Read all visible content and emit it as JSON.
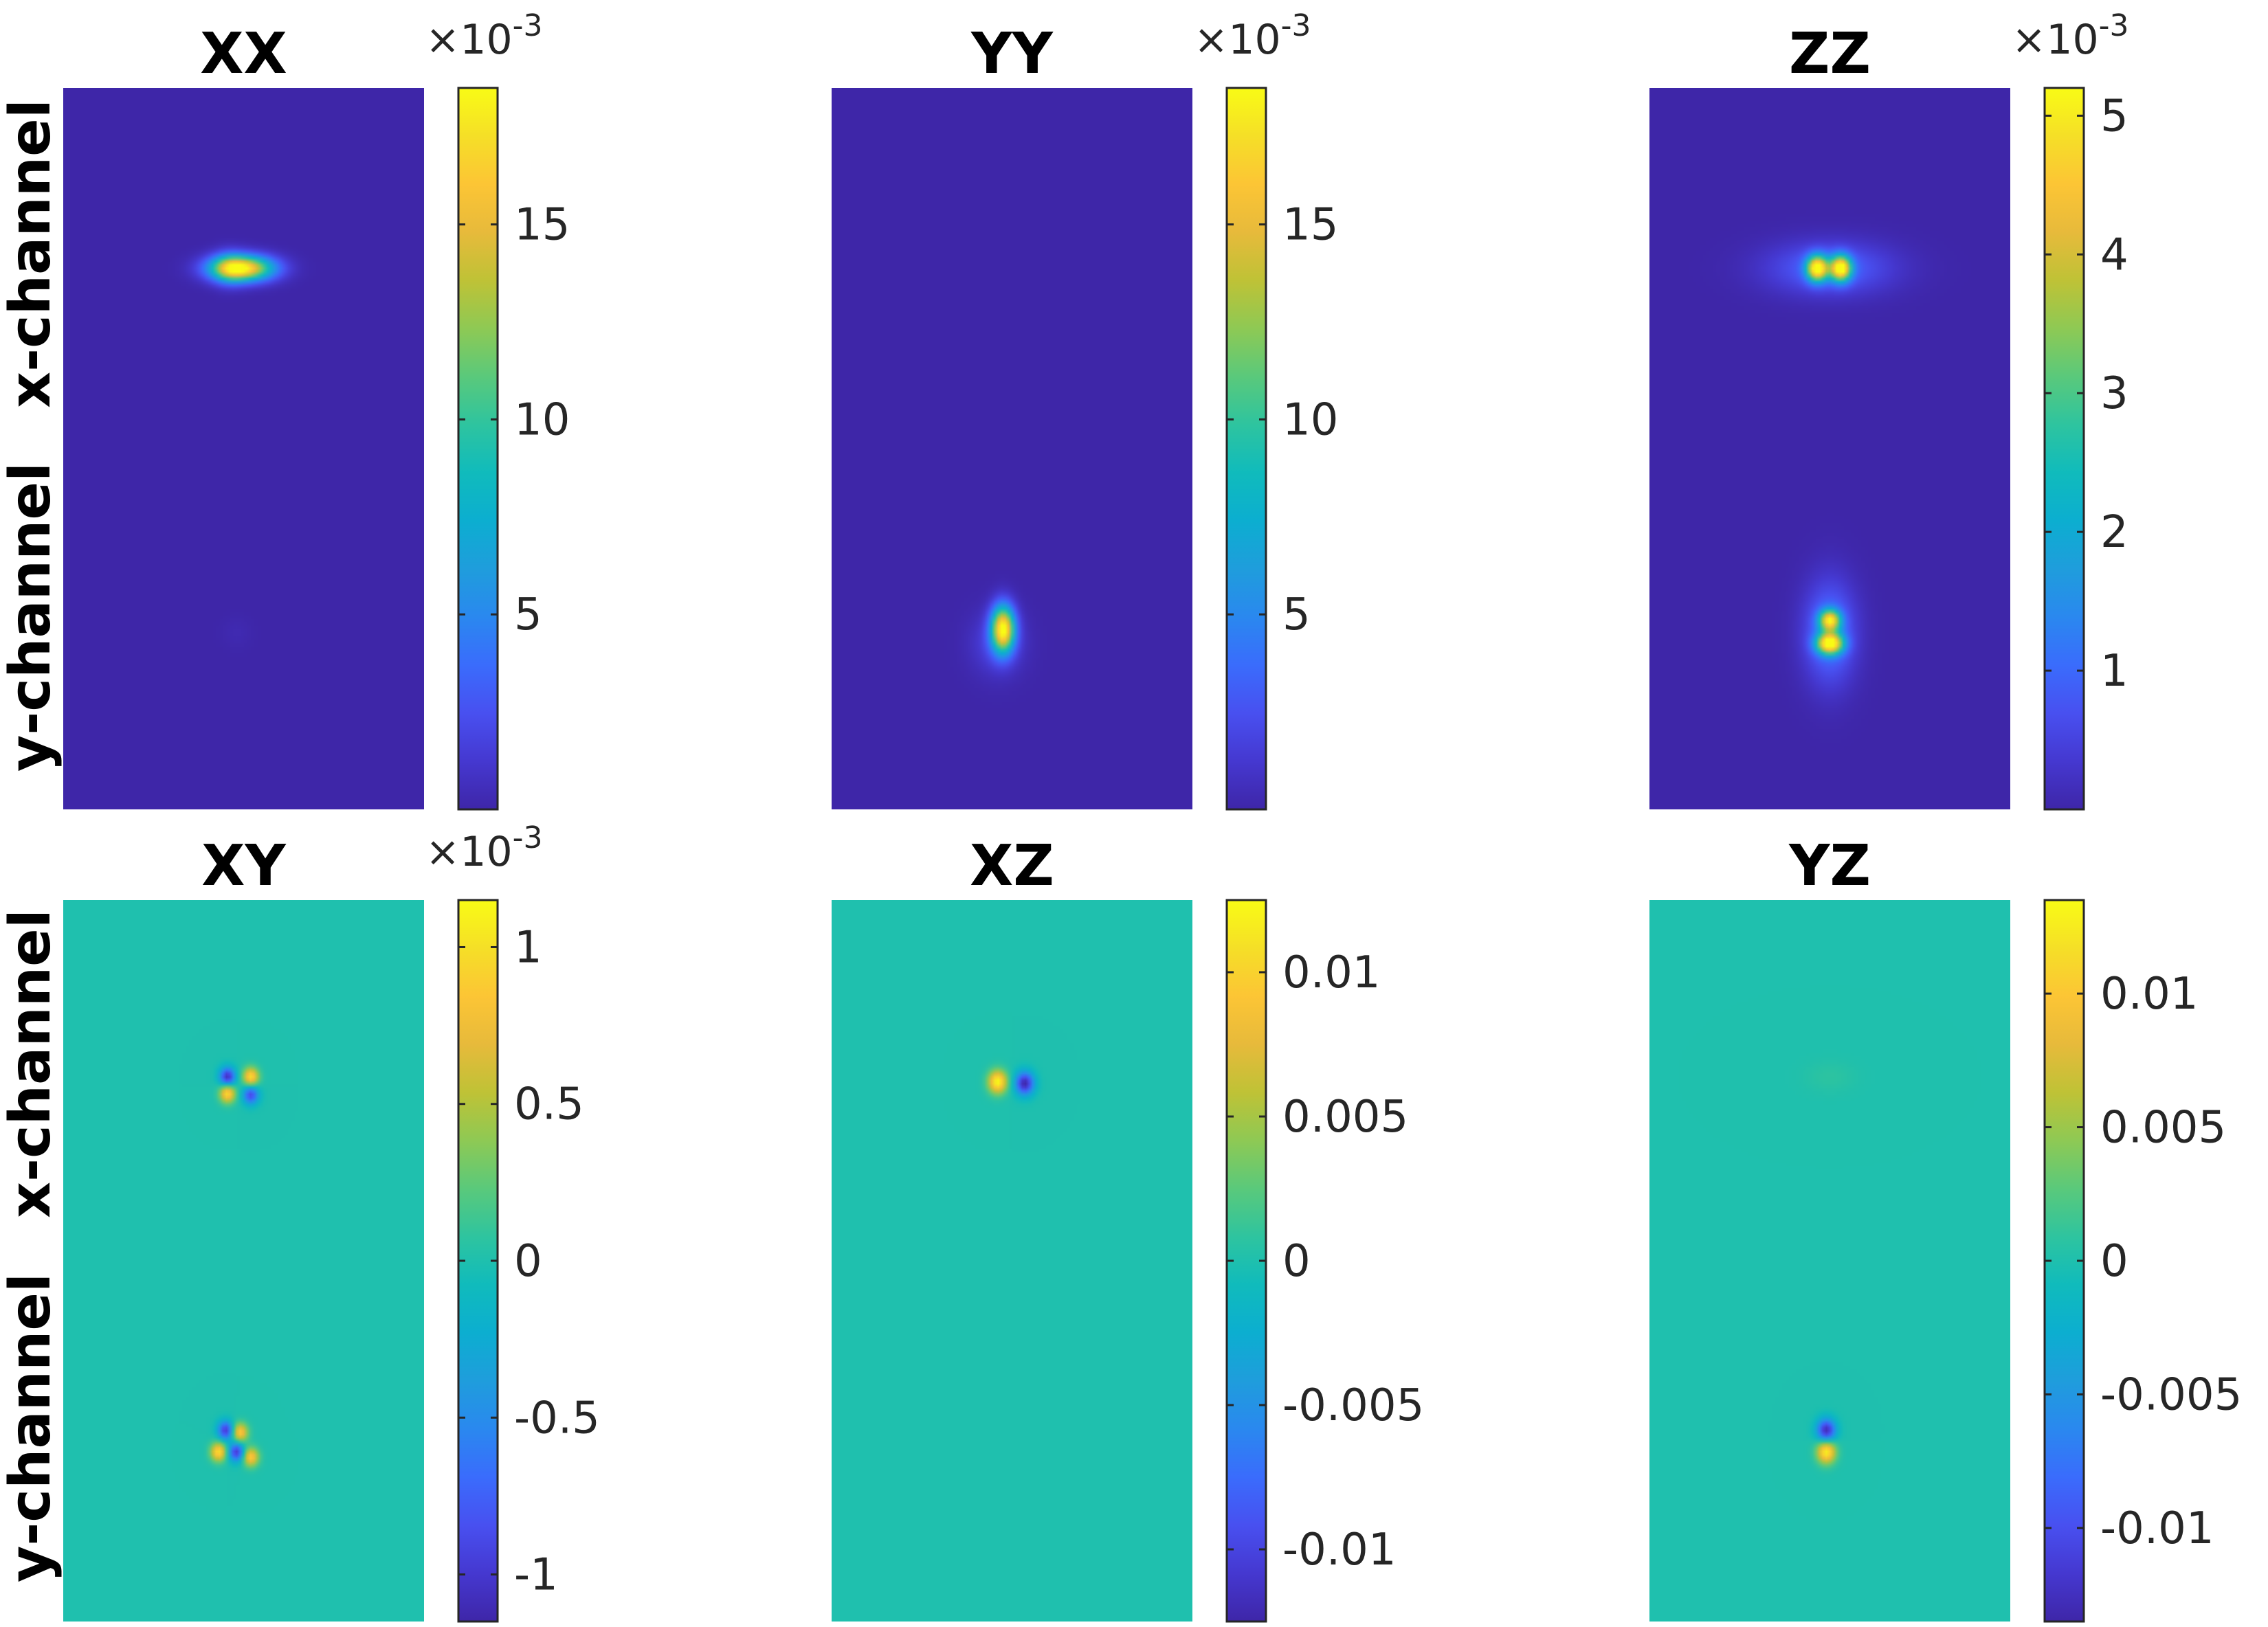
{
  "colors": {
    "parula": [
      "#3e26a8",
      "#4538d0",
      "#4850f0",
      "#3a6cfc",
      "#2a88ef",
      "#1f9ddc",
      "#0caed0",
      "#10bbbc",
      "#2ec49f",
      "#5ac97b",
      "#8ec954",
      "#bfc236",
      "#e7ba3b",
      "#fcc535",
      "#f5df27",
      "#f9fb15"
    ]
  },
  "figure": {
    "row_labels": [
      "x-channel",
      "y-channel"
    ]
  },
  "chart_data": [
    {
      "type": "heatmap",
      "title": "XX",
      "multiplier": "×10",
      "multiplier_exp": "-3",
      "clim": [
        0.0,
        18.5
      ],
      "colorbar_ticks": [
        {
          "v": 5,
          "label": "5"
        },
        {
          "v": 10,
          "label": "10"
        },
        {
          "v": 15,
          "label": "15"
        }
      ],
      "row_labels": [
        "x-channel",
        "y-channel"
      ],
      "spots": [
        {
          "x": 0.495,
          "y": 0.25,
          "sx": 0.06,
          "sy": 0.012,
          "amp": 18.0
        },
        {
          "x": 0.46,
          "y": 0.25,
          "sx": 0.03,
          "sy": 0.015,
          "amp": 4.0
        },
        {
          "x": 0.48,
          "y": 0.755,
          "sx": 0.03,
          "sy": 0.015,
          "amp": 0.3
        }
      ]
    },
    {
      "type": "heatmap",
      "title": "YY",
      "multiplier": "×10",
      "multiplier_exp": "-3",
      "clim": [
        0.0,
        18.5
      ],
      "colorbar_ticks": [
        {
          "v": 5,
          "label": "5"
        },
        {
          "v": 10,
          "label": "10"
        },
        {
          "v": 15,
          "label": "15"
        }
      ],
      "spots": [
        {
          "x": 0.475,
          "y": 0.75,
          "sx": 0.022,
          "sy": 0.022,
          "amp": 18.0
        },
        {
          "x": 0.46,
          "y": 0.77,
          "sx": 0.05,
          "sy": 0.03,
          "amp": 2.0
        }
      ]
    },
    {
      "type": "heatmap",
      "title": "ZZ",
      "multiplier": "×10",
      "multiplier_exp": "-3",
      "clim": [
        0.0,
        5.2
      ],
      "colorbar_ticks": [
        {
          "v": 1,
          "label": "1"
        },
        {
          "v": 2,
          "label": "2"
        },
        {
          "v": 3,
          "label": "3"
        },
        {
          "v": 4,
          "label": "4"
        },
        {
          "v": 5,
          "label": "5"
        }
      ],
      "spots": [
        {
          "x": 0.465,
          "y": 0.25,
          "sx": 0.02,
          "sy": 0.012,
          "amp": 5.0
        },
        {
          "x": 0.53,
          "y": 0.25,
          "sx": 0.02,
          "sy": 0.012,
          "amp": 5.0
        },
        {
          "x": 0.5,
          "y": 0.25,
          "sx": 0.12,
          "sy": 0.025,
          "amp": 1.0
        },
        {
          "x": 0.5,
          "y": 0.738,
          "sx": 0.02,
          "sy": 0.01,
          "amp": 4.2
        },
        {
          "x": 0.5,
          "y": 0.77,
          "sx": 0.025,
          "sy": 0.01,
          "amp": 5.0
        },
        {
          "x": 0.5,
          "y": 0.755,
          "sx": 0.05,
          "sy": 0.05,
          "amp": 1.2
        }
      ]
    },
    {
      "type": "heatmap",
      "title": "XY",
      "multiplier": "×10",
      "multiplier_exp": "-3",
      "clim": [
        -1.15,
        1.15
      ],
      "colorbar_ticks": [
        {
          "v": -1,
          "label": "-1"
        },
        {
          "v": -0.5,
          "label": "-0.5"
        },
        {
          "v": 0,
          "label": "0"
        },
        {
          "v": 0.5,
          "label": "0.5"
        },
        {
          "v": 1,
          "label": "1"
        }
      ],
      "spots": [
        {
          "x": 0.455,
          "y": 0.245,
          "sx": 0.015,
          "sy": 0.009,
          "amp": -1.1
        },
        {
          "x": 0.52,
          "y": 0.245,
          "sx": 0.015,
          "sy": 0.009,
          "amp": 1.0
        },
        {
          "x": 0.455,
          "y": 0.268,
          "sx": 0.015,
          "sy": 0.009,
          "amp": 1.0
        },
        {
          "x": 0.52,
          "y": 0.27,
          "sx": 0.015,
          "sy": 0.009,
          "amp": -0.9
        },
        {
          "x": 0.45,
          "y": 0.735,
          "sx": 0.015,
          "sy": 0.009,
          "amp": -1.0
        },
        {
          "x": 0.49,
          "y": 0.738,
          "sx": 0.015,
          "sy": 0.009,
          "amp": 0.9
        },
        {
          "x": 0.43,
          "y": 0.765,
          "sx": 0.015,
          "sy": 0.009,
          "amp": 1.0
        },
        {
          "x": 0.48,
          "y": 0.765,
          "sx": 0.015,
          "sy": 0.009,
          "amp": -1.0
        },
        {
          "x": 0.52,
          "y": 0.772,
          "sx": 0.015,
          "sy": 0.009,
          "amp": 0.9
        }
      ]
    },
    {
      "type": "heatmap",
      "title": "XZ",
      "multiplier": "",
      "multiplier_exp": "",
      "clim": [
        -0.0125,
        0.0125
      ],
      "colorbar_ticks": [
        {
          "v": -0.01,
          "label": "-0.01"
        },
        {
          "v": -0.005,
          "label": "-0.005"
        },
        {
          "v": 0,
          "label": "0"
        },
        {
          "v": 0.005,
          "label": "0.005"
        },
        {
          "v": 0.01,
          "label": "0.01"
        }
      ],
      "spots": [
        {
          "x": 0.46,
          "y": 0.252,
          "sx": 0.018,
          "sy": 0.011,
          "amp": 0.0125
        },
        {
          "x": 0.535,
          "y": 0.254,
          "sx": 0.018,
          "sy": 0.011,
          "amp": -0.0125
        }
      ]
    },
    {
      "type": "heatmap",
      "title": "YZ",
      "multiplier": "",
      "multiplier_exp": "",
      "clim": [
        -0.0135,
        0.0135
      ],
      "colorbar_ticks": [
        {
          "v": -0.01,
          "label": "-0.01"
        },
        {
          "v": -0.005,
          "label": "-0.005"
        },
        {
          "v": 0,
          "label": "0"
        },
        {
          "v": 0.005,
          "label": "0.005"
        },
        {
          "v": 0.01,
          "label": "0.01"
        }
      ],
      "spots": [
        {
          "x": 0.49,
          "y": 0.735,
          "sx": 0.018,
          "sy": 0.011,
          "amp": -0.013
        },
        {
          "x": 0.49,
          "y": 0.765,
          "sx": 0.018,
          "sy": 0.011,
          "amp": 0.013
        },
        {
          "x": 0.5,
          "y": 0.245,
          "sx": 0.05,
          "sy": 0.015,
          "amp": 0.0008
        }
      ]
    }
  ]
}
